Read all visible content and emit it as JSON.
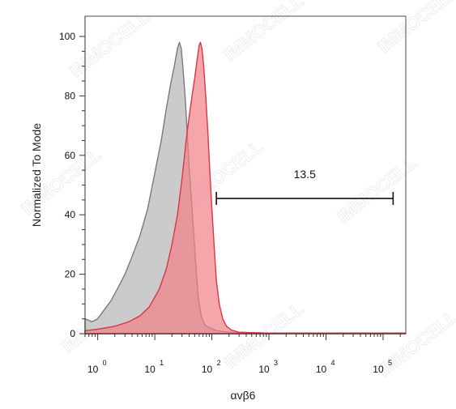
{
  "chart_data": {
    "type": "area",
    "xlabel": "αvβ6",
    "ylabel": "Normalized To Mode",
    "x_scale": "log",
    "xlim": [
      0.6,
      250000
    ],
    "ylim": [
      0,
      100
    ],
    "y_ticks": [
      0,
      20,
      40,
      60,
      80,
      100
    ],
    "x_tick_bases": [
      "10",
      "10",
      "10",
      "10",
      "10",
      "10"
    ],
    "x_tick_exponents": [
      "0",
      "1",
      "2",
      "3",
      "4",
      "5"
    ],
    "x_tick_values": [
      1,
      10,
      100,
      1000,
      10000,
      100000
    ],
    "grid": false,
    "watermark": "IMMOCELL",
    "series": [
      {
        "fill": "#b9b9b9",
        "stroke": "#7a7a7a",
        "points": [
          [
            0.6,
            5
          ],
          [
            0.8,
            4
          ],
          [
            1.0,
            5
          ],
          [
            1.3,
            8
          ],
          [
            1.7,
            11
          ],
          [
            2.2,
            15
          ],
          [
            3.0,
            20
          ],
          [
            4.0,
            26
          ],
          [
            5.5,
            33
          ],
          [
            7.5,
            42
          ],
          [
            10,
            54
          ],
          [
            13,
            65
          ],
          [
            16,
            76
          ],
          [
            19,
            84
          ],
          [
            22,
            90
          ],
          [
            25,
            96
          ],
          [
            27,
            98
          ],
          [
            29,
            96
          ],
          [
            31,
            90
          ],
          [
            34,
            80
          ],
          [
            37,
            68
          ],
          [
            40,
            56
          ],
          [
            44,
            45
          ],
          [
            48,
            34
          ],
          [
            53,
            22
          ],
          [
            58,
            12
          ],
          [
            65,
            6
          ],
          [
            75,
            3
          ],
          [
            90,
            2
          ],
          [
            120,
            1
          ],
          [
            200,
            0.5
          ],
          [
            1000,
            0.2
          ],
          [
            250000,
            0.2
          ]
        ]
      },
      {
        "fill": "#f27f87",
        "stroke": "#d93744",
        "points": [
          [
            0.6,
            1
          ],
          [
            1.0,
            1.5
          ],
          [
            2.0,
            2.5
          ],
          [
            3.5,
            4
          ],
          [
            5.5,
            6
          ],
          [
            8,
            9
          ],
          [
            12,
            15
          ],
          [
            16,
            22
          ],
          [
            20,
            30
          ],
          [
            25,
            40
          ],
          [
            30,
            52
          ],
          [
            35,
            64
          ],
          [
            40,
            73
          ],
          [
            45,
            80
          ],
          [
            50,
            86
          ],
          [
            55,
            92
          ],
          [
            60,
            97
          ],
          [
            63,
            98
          ],
          [
            67,
            96
          ],
          [
            72,
            90
          ],
          [
            78,
            80
          ],
          [
            85,
            68
          ],
          [
            92,
            55
          ],
          [
            100,
            42
          ],
          [
            110,
            29
          ],
          [
            120,
            18
          ],
          [
            135,
            10
          ],
          [
            155,
            5
          ],
          [
            180,
            2.5
          ],
          [
            220,
            1.2
          ],
          [
            300,
            0.5
          ],
          [
            1000,
            0.2
          ],
          [
            250000,
            0.2
          ]
        ]
      }
    ],
    "gate": {
      "label": "13.5",
      "x_start": 120,
      "x_end": 150000,
      "y": 45.5
    }
  }
}
